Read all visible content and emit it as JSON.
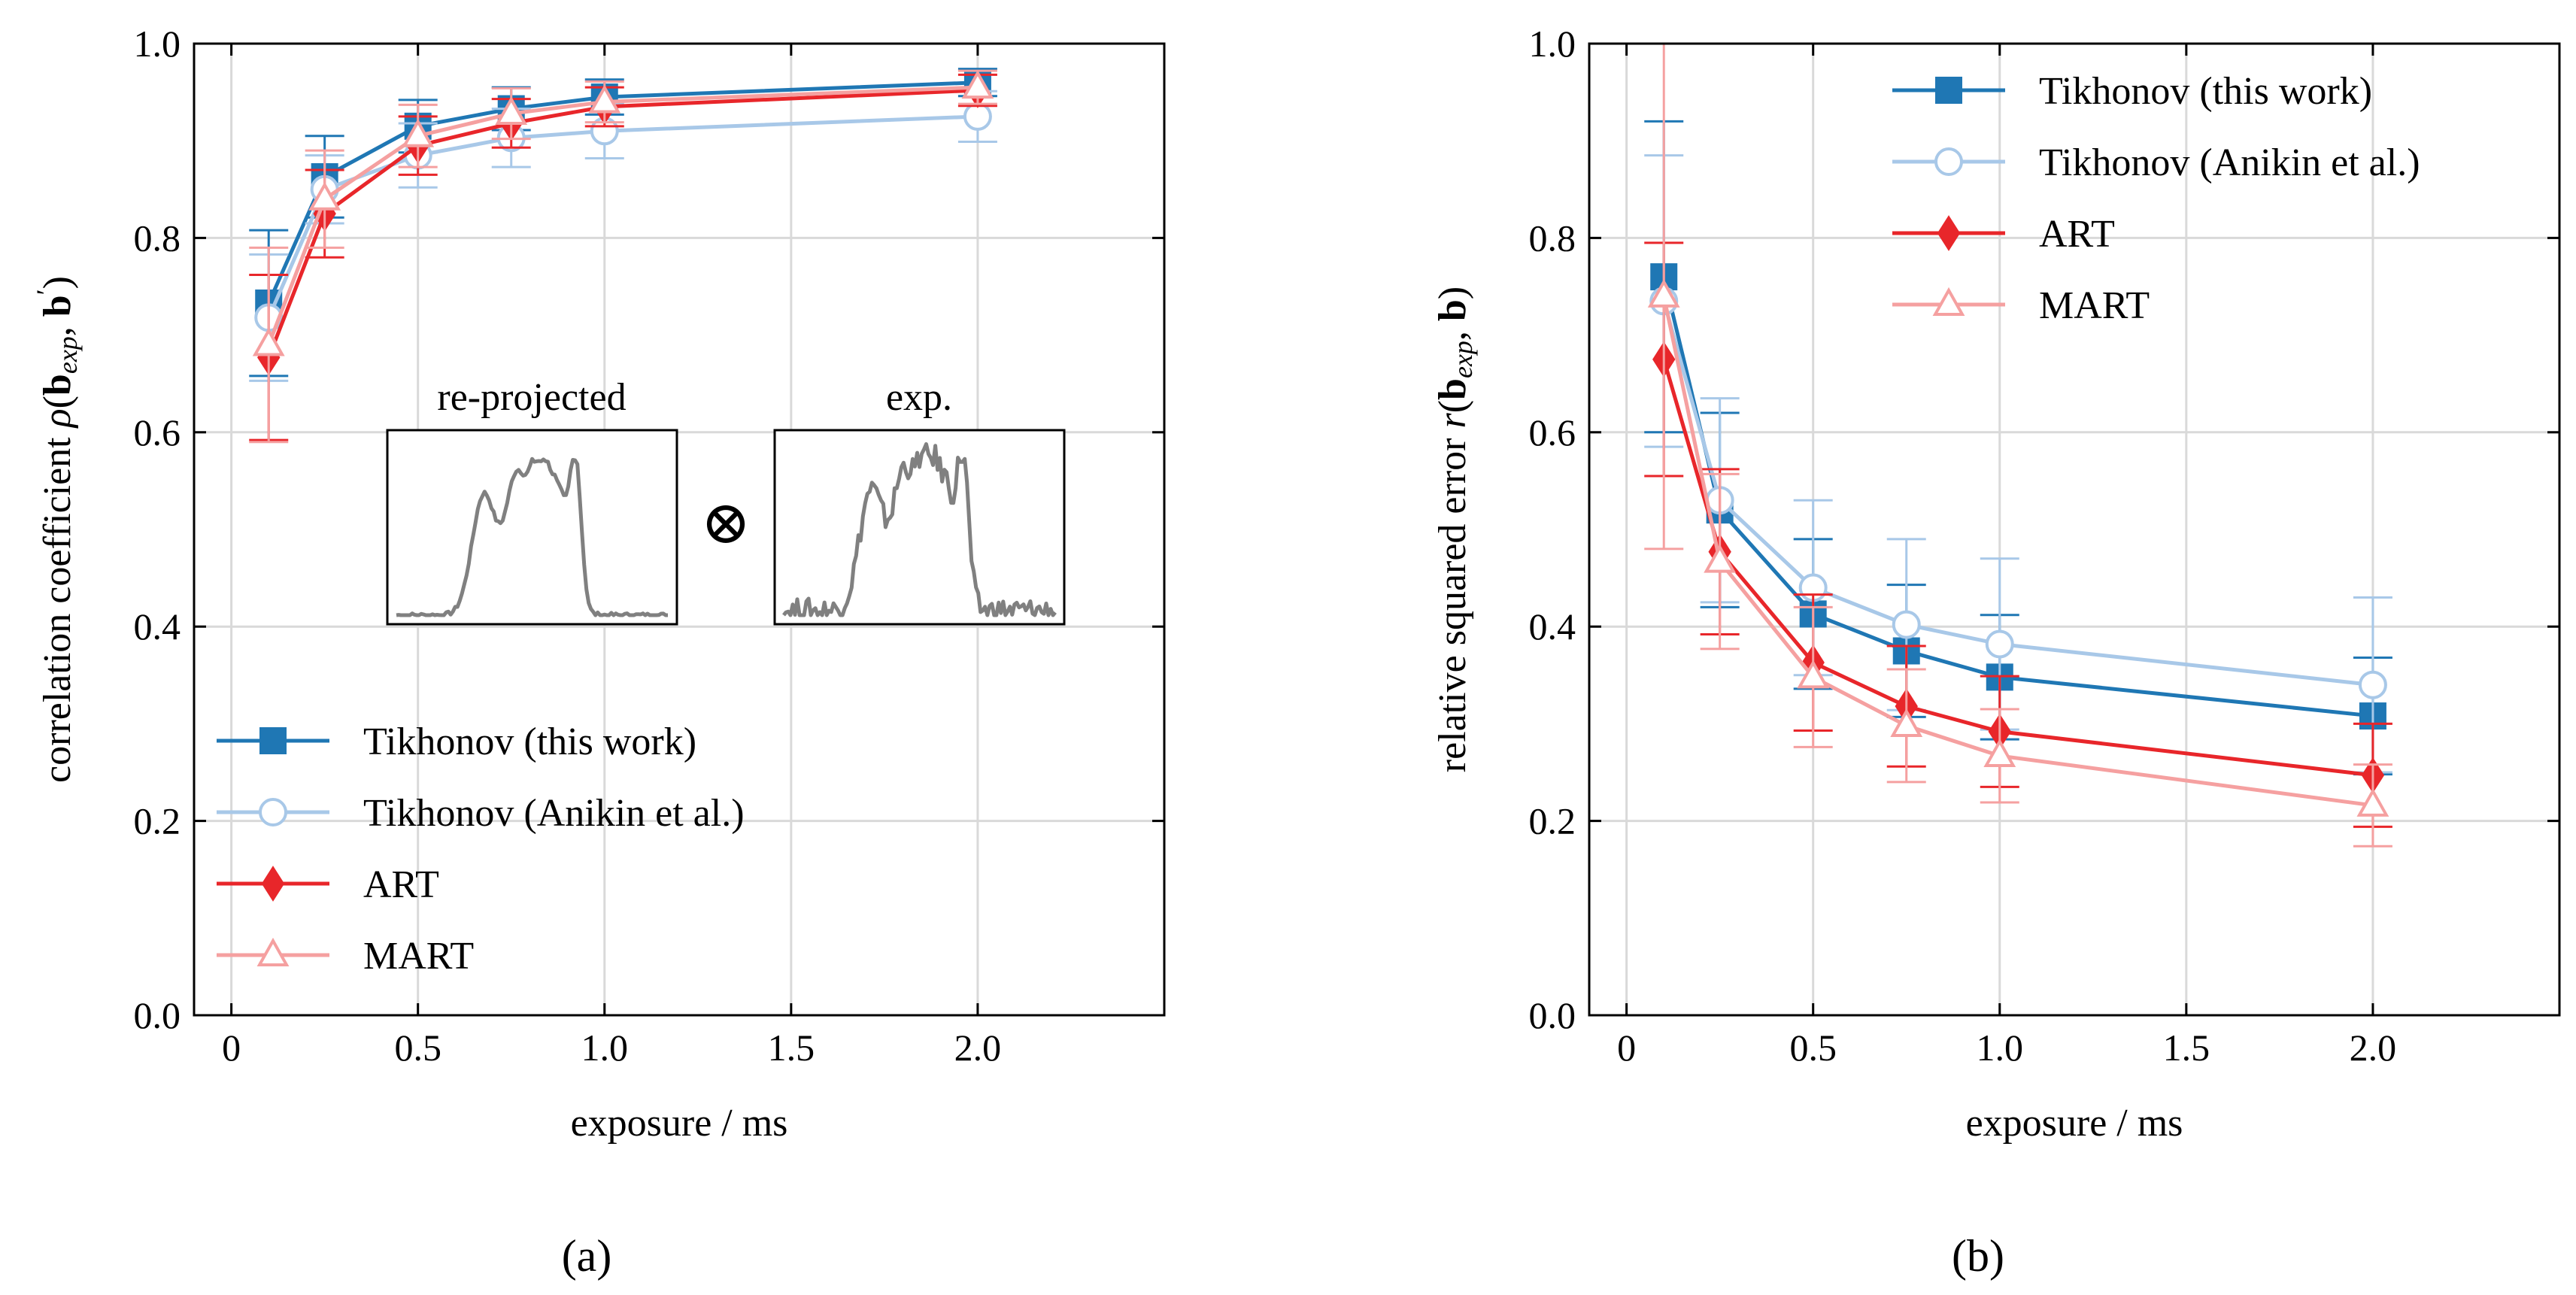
{
  "panel_captions": [
    "(a)",
    "(b)"
  ],
  "colors": {
    "tikhonov_this": "#1f77b4",
    "tikhonov_anikin": "#a8c8e8",
    "art": "#e8262a",
    "mart": "#f5a0a0",
    "inset_line": "#808080"
  },
  "chart_data": [
    {
      "type": "line",
      "panel": "(a)",
      "xlabel": "exposure / ms",
      "ylabel": "correlation coefficient ρ(b_exp, b′)",
      "xlim": [
        -0.1,
        2.5
      ],
      "ylim": [
        0.0,
        1.0
      ],
      "xticks": [
        "0",
        "0.5",
        "1.0",
        "1.5",
        "2.0"
      ],
      "yticks": [
        "0.0",
        "0.2",
        "0.4",
        "0.6",
        "0.8",
        "1.0"
      ],
      "grid": true,
      "legend_position": "lower-left",
      "x": [
        0.1,
        0.25,
        0.5,
        0.75,
        1.0,
        2.0
      ],
      "series": [
        {
          "name": "Tikhonov (this work)",
          "marker": "square-filled",
          "values": [
            0.733,
            0.863,
            0.915,
            0.933,
            0.945,
            0.96
          ],
          "err": [
            0.075,
            0.042,
            0.027,
            0.022,
            0.018,
            0.014
          ]
        },
        {
          "name": "Tikhonov (Anikin et al.)",
          "marker": "circle-open",
          "values": [
            0.718,
            0.85,
            0.885,
            0.903,
            0.91,
            0.925
          ],
          "err": [
            0.065,
            0.035,
            0.033,
            0.03,
            0.028,
            0.026
          ]
        },
        {
          "name": "ART",
          "marker": "diamond-filled",
          "values": [
            0.677,
            0.825,
            0.895,
            0.918,
            0.935,
            0.952
          ],
          "err": [
            0.085,
            0.045,
            0.03,
            0.025,
            0.02,
            0.016
          ]
        },
        {
          "name": "MART",
          "marker": "triangle-open",
          "values": [
            0.69,
            0.84,
            0.905,
            0.928,
            0.94,
            0.955
          ],
          "err": [
            0.1,
            0.05,
            0.032,
            0.026,
            0.021,
            0.017
          ]
        }
      ],
      "insets": [
        {
          "label": "re-projected"
        },
        {
          "label": "exp."
        }
      ],
      "inset_operator": "⊗"
    },
    {
      "type": "line",
      "panel": "(b)",
      "xlabel": "exposure / ms",
      "ylabel": "relative squared error r(b_exp, b)",
      "xlim": [
        -0.1,
        2.5
      ],
      "ylim": [
        0.0,
        1.0
      ],
      "xticks": [
        "0",
        "0.5",
        "1.0",
        "1.5",
        "2.0"
      ],
      "yticks": [
        "0.0",
        "0.2",
        "0.4",
        "0.6",
        "0.8",
        "1.0"
      ],
      "grid": true,
      "legend_position": "upper-right",
      "x": [
        0.1,
        0.25,
        0.5,
        0.75,
        1.0,
        2.0
      ],
      "series": [
        {
          "name": "Tikhonov (this work)",
          "marker": "square-filled",
          "values": [
            0.76,
            0.52,
            0.413,
            0.375,
            0.348,
            0.308
          ],
          "err": [
            0.16,
            0.1,
            0.077,
            0.068,
            0.064,
            0.06
          ]
        },
        {
          "name": "Tikhonov (Anikin et al.)",
          "marker": "circle-open",
          "values": [
            0.735,
            0.53,
            0.44,
            0.402,
            0.382,
            0.34
          ],
          "err": [
            0.15,
            0.105,
            0.09,
            0.088,
            0.088,
            0.09
          ]
        },
        {
          "name": "ART",
          "marker": "diamond-filled",
          "values": [
            0.675,
            0.477,
            0.363,
            0.318,
            0.292,
            0.247
          ],
          "err": [
            0.12,
            0.085,
            0.07,
            0.062,
            0.057,
            0.053
          ]
        },
        {
          "name": "MART",
          "marker": "triangle-open",
          "values": [
            0.74,
            0.467,
            0.348,
            0.298,
            0.267,
            0.216
          ],
          "err": [
            0.26,
            0.09,
            0.072,
            0.058,
            0.048,
            0.042
          ]
        }
      ]
    }
  ]
}
